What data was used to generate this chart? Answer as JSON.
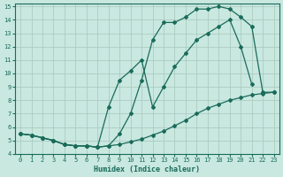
{
  "xlabel": "Humidex (Indice chaleur)",
  "bg_color": "#c8e8e0",
  "line_color": "#1a6b5a",
  "grid_color": "#a8c8bc",
  "xlim": [
    -0.5,
    23.5
  ],
  "ylim": [
    4,
    15.2
  ],
  "xticks": [
    0,
    1,
    2,
    3,
    4,
    5,
    6,
    7,
    8,
    9,
    10,
    11,
    12,
    13,
    14,
    15,
    16,
    17,
    18,
    19,
    20,
    21,
    22,
    23
  ],
  "yticks": [
    4,
    5,
    6,
    7,
    8,
    9,
    10,
    11,
    12,
    13,
    14,
    15
  ],
  "curve1_x": [
    0,
    1,
    2,
    3,
    4,
    5,
    6,
    7,
    8,
    9,
    10,
    11,
    12,
    13,
    14,
    15,
    16,
    17,
    18,
    19,
    20,
    21,
    22,
    23
  ],
  "curve1_y": [
    5.5,
    5.4,
    5.2,
    5.0,
    4.7,
    4.6,
    4.6,
    4.5,
    4.6,
    4.7,
    4.9,
    5.1,
    5.4,
    5.7,
    6.1,
    6.5,
    7.0,
    7.4,
    7.7,
    8.0,
    8.2,
    8.4,
    8.5,
    8.6
  ],
  "curve2_x": [
    0,
    1,
    2,
    3,
    4,
    5,
    6,
    7,
    8,
    9,
    10,
    11,
    12,
    13,
    14,
    15,
    16,
    17,
    18,
    19,
    20,
    21
  ],
  "curve2_y": [
    5.5,
    5.4,
    5.2,
    5.0,
    4.7,
    4.6,
    4.6,
    4.5,
    7.5,
    9.5,
    10.2,
    11.0,
    7.5,
    9.0,
    10.5,
    11.5,
    12.5,
    13.0,
    13.5,
    14.0,
    12.0,
    9.2
  ],
  "curve3_x": [
    0,
    1,
    2,
    3,
    4,
    5,
    6,
    7,
    8,
    9,
    10,
    11,
    12,
    13,
    14,
    15,
    16,
    17,
    18,
    19,
    20,
    21,
    22,
    23
  ],
  "curve3_y": [
    5.5,
    5.4,
    5.2,
    5.0,
    4.7,
    4.6,
    4.6,
    4.5,
    4.6,
    5.5,
    7.0,
    9.5,
    12.5,
    13.8,
    13.8,
    14.2,
    14.8,
    14.8,
    15.0,
    14.8,
    14.2,
    13.5,
    8.6,
    8.6
  ]
}
